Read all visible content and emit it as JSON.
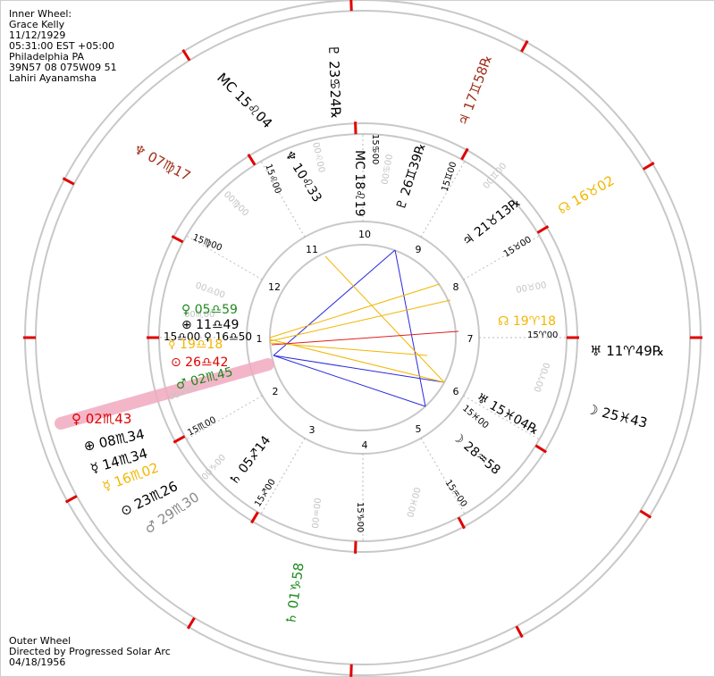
{
  "inner_header": {
    "lines": [
      "Inner Wheel:",
      "Grace Kelly",
      "11/12/1929",
      "05:31:00 EST +05:00",
      "Philadelphia PA",
      "39N57 08 075W09 51",
      "Lahiri Ayanamsha"
    ]
  },
  "outer_header": {
    "lines": [
      "Outer Wheel",
      "Directed by Progressed Solar Arc",
      "04/18/1956"
    ]
  },
  "colors": {
    "ring": "#c8c8c8",
    "cusp_tick": "#e00000",
    "dotted": "#b8b8b8",
    "highlight": "#f2aac0",
    "aspect_blue": "#2a2adf",
    "aspect_yellow": "#f2b600",
    "aspect_red": "#e02020"
  },
  "house_numbers": [
    "1",
    "2",
    "3",
    "4",
    "5",
    "6",
    "7",
    "8",
    "9",
    "10",
    "11",
    "12"
  ],
  "middle_cusp_labels": [
    "15♍00",
    "15♌00",
    "15♋00",
    "15♊00",
    "15♉00",
    "15♈00",
    "15♓00",
    "15♒00",
    "15♑00",
    "15♐00",
    "15♏00"
  ],
  "faint_labels": [
    "00♎00",
    "00♍00",
    "00♌00",
    "00♋00",
    "00♊00",
    "00♉00",
    "00♈00",
    "00♓00",
    "00♒00",
    "00♑00",
    "00♐00",
    "00♏00"
  ],
  "inner_planets": [
    {
      "name": "venus",
      "text": "♀ 05♎59",
      "color": "#1e8a1e"
    },
    {
      "name": "earth",
      "text": "⊕ 11♎49",
      "color": "#000000"
    },
    {
      "name": "ascendant",
      "text": "15♎00 ♀ 16♎50",
      "color": "#000000"
    },
    {
      "name": "uranus-node",
      "text": "☿ 19♎18",
      "color": "#f2b600"
    },
    {
      "name": "sun",
      "text": "⊙ 26♎42",
      "color": "#e00000"
    },
    {
      "name": "mars",
      "text": "♂ 02♏45",
      "color": "#1e8a1e"
    },
    {
      "name": "neptune",
      "text": "♆ 10♌33",
      "color": "#000000"
    },
    {
      "name": "mc",
      "text": "MC 18♌19",
      "color": "#000000"
    },
    {
      "name": "pluto",
      "text": "♇ 26♊39℞",
      "color": "#000000"
    },
    {
      "name": "jupiter",
      "text": "♃ 21♉13℞",
      "color": "#000000"
    },
    {
      "name": "node",
      "text": "☊ 19♈18",
      "color": "#f2b600"
    },
    {
      "name": "uranus",
      "text": "♅ 15♓04℞",
      "color": "#000000"
    },
    {
      "name": "moon",
      "text": "☽ 28♒58",
      "color": "#000000"
    },
    {
      "name": "saturn",
      "text": "♄ 05♐14",
      "color": "#000000"
    }
  ],
  "outer_planets": [
    {
      "name": "mc",
      "text": "MC 15♌04",
      "color": "#000000"
    },
    {
      "name": "pluto",
      "text": "♇ 23♋24℞",
      "color": "#000000"
    },
    {
      "name": "jupiter",
      "text": "♃ 17♊58℞",
      "color": "#a0301a"
    },
    {
      "name": "neptune",
      "text": "♆ 07♍17",
      "color": "#a0301a"
    },
    {
      "name": "node",
      "text": "☊ 16♉02",
      "color": "#f2b600"
    },
    {
      "name": "uranus",
      "text": "♅ 11♈49℞",
      "color": "#000000"
    },
    {
      "name": "moon",
      "text": "☽ 25♓43",
      "color": "#000000"
    },
    {
      "name": "venus",
      "text": "♀ 02♏43",
      "color": "#e00000"
    },
    {
      "name": "earth",
      "text": "⊕ 08♏34",
      "color": "#000000"
    },
    {
      "name": "mercury",
      "text": "☿ 14♏34",
      "color": "#000000"
    },
    {
      "name": "uranus-node",
      "text": "☿ 16♏02",
      "color": "#f2b600"
    },
    {
      "name": "sun",
      "text": "⊙ 23♏26",
      "color": "#000000"
    },
    {
      "name": "mars",
      "text": "♂ 29♏30",
      "color": "#888888"
    },
    {
      "name": "saturn",
      "text": "♄ 01♑58",
      "color": "#1e8a1e"
    }
  ]
}
